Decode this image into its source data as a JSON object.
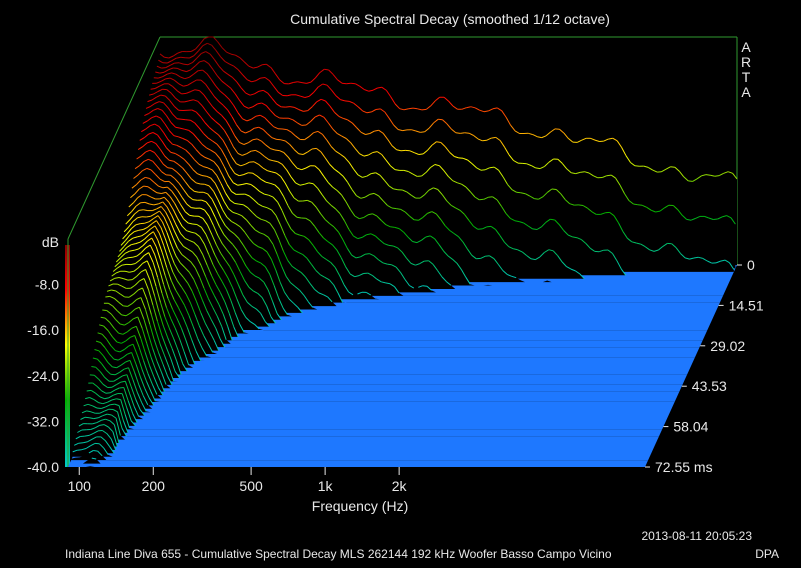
{
  "chart_data": {
    "type": "waterfall",
    "title": "Cumulative Spectral Decay (smoothed 1/12 octave)",
    "xlabel": "Frequency (Hz)",
    "x_scale": "log",
    "x_ticks": [
      "100",
      "200",
      "500",
      "1k",
      "2k"
    ],
    "x_tick_values": [
      100,
      200,
      500,
      1000,
      2000
    ],
    "xlim": [
      90,
      20000
    ],
    "z_unit_label": "dB",
    "z_ticks": [
      "-8.0",
      "-16.0",
      "-24.0",
      "-32.0",
      "-40.0"
    ],
    "zlim": [
      -40,
      0
    ],
    "time_ticks": [
      "0",
      "14.51",
      "29.02",
      "43.53",
      "58.04",
      "72.55 ms"
    ],
    "time_values_ms": [
      0,
      14.51,
      29.02,
      43.53,
      58.04,
      72.55
    ],
    "side_label": [
      "A",
      "R",
      "T",
      "A"
    ],
    "footer_date": "2013-08-11  20:05:23",
    "footer_caption": "Indiana Line Diva 655 - Cumulative Spectral Decay MLS 262144 192 kHz Woofer Basso Campo Vicino",
    "footer_tag": "DPA",
    "colors": {
      "floor": "#1e78ff",
      "frame": "#2f9a2f",
      "background": "#000000",
      "colormap": [
        "#00cccc",
        "#00b000",
        "#ffff00",
        "#ff0000",
        "#8b0000"
      ]
    }
  }
}
